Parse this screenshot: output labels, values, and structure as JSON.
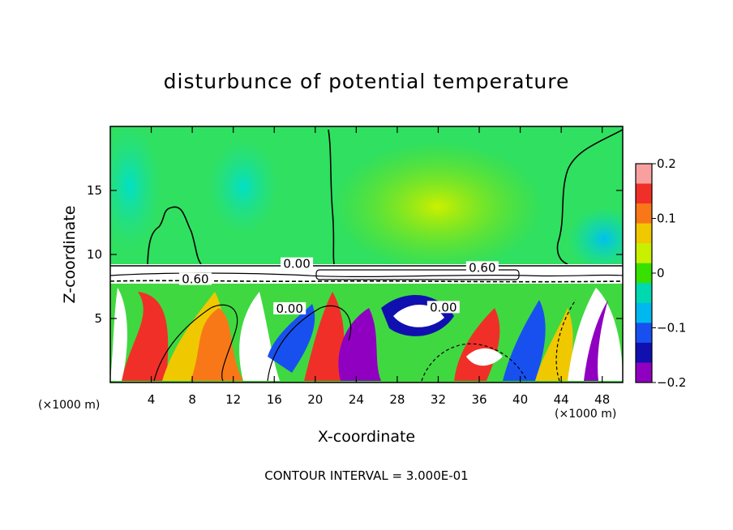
{
  "chart_data": {
    "type": "heatmap",
    "title": "disturbunce of potential temperature",
    "xlabel": "X-coordinate",
    "ylabel": "Z-coordinate",
    "x_unit": "(×1000 m)",
    "x_ticks": [
      4,
      8,
      12,
      16,
      20,
      24,
      28,
      32,
      36,
      40,
      44,
      48
    ],
    "y_ticks": [
      5,
      10,
      15
    ],
    "xlim": [
      0,
      50
    ],
    "ylim": [
      0,
      20
    ],
    "colorbar": {
      "ticks": [
        0.2,
        0.1,
        0,
        -0.1,
        -0.2
      ],
      "tick_labels": [
        "0.2",
        "0.1",
        "0",
        "−0.1",
        "−0.2"
      ],
      "range": [
        -0.2,
        0.2
      ],
      "colors": [
        "#f8a0a0",
        "#f03028",
        "#f87818",
        "#f0c800",
        "#c8f000",
        "#38e000",
        "#00d8b0",
        "#00b8f0",
        "#1850f0",
        "#1010b0",
        "#9000c0"
      ]
    },
    "contour_labels": [
      {
        "text": "0.00",
        "x": 18.2,
        "y": 9.2
      },
      {
        "text": "0.60",
        "x": 36.3,
        "y": 8.9
      },
      {
        "text": "0.60",
        "x": 8.3,
        "y": 8.0
      },
      {
        "text": "0.00",
        "x": 17.5,
        "y": 5.7
      },
      {
        "text": "0.00",
        "x": 32.5,
        "y": 5.8
      }
    ],
    "footer": "CONTOUR INTERVAL = 3.000E-01"
  }
}
